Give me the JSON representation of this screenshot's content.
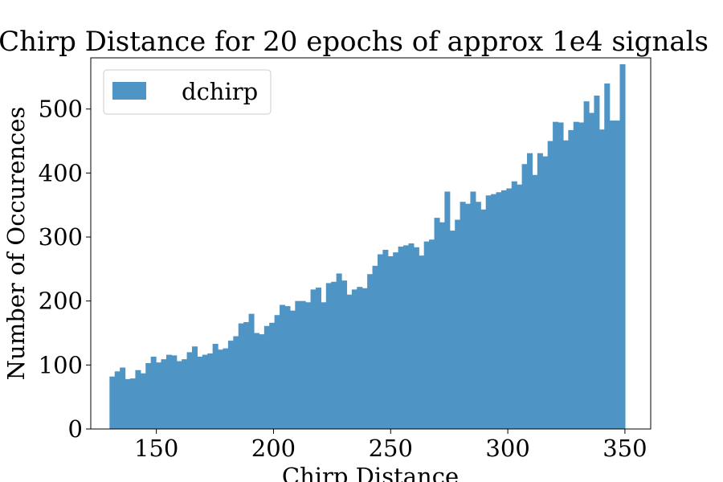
{
  "chart_data": {
    "type": "bar",
    "title": "Chirp Distance for 20 epochs of approx 1e4 signals",
    "xlabel": "Chirp Distance",
    "ylabel": "Number of Occurences",
    "xlim": [
      122,
      361
    ],
    "ylim": [
      0,
      580
    ],
    "x_ticks": [
      150,
      200,
      250,
      300,
      350
    ],
    "y_ticks": [
      0,
      100,
      200,
      300,
      400,
      500
    ],
    "grid": false,
    "legend": "top-left",
    "bin_range": [
      130,
      350
    ],
    "series": [
      {
        "name": "dchirp",
        "color": "#4e94c4",
        "values": [
          82,
          90,
          96,
          78,
          79,
          92,
          87,
          103,
          113,
          104,
          109,
          116,
          115,
          106,
          109,
          120,
          129,
          113,
          116,
          118,
          133,
          124,
          126,
          138,
          145,
          165,
          167,
          180,
          150,
          148,
          161,
          166,
          178,
          194,
          192,
          185,
          200,
          200,
          198,
          218,
          221,
          198,
          228,
          230,
          243,
          232,
          210,
          218,
          222,
          220,
          242,
          255,
          273,
          280,
          270,
          276,
          285,
          287,
          290,
          284,
          271,
          293,
          296,
          330,
          323,
          371,
          310,
          327,
          355,
          352,
          371,
          355,
          343,
          365,
          367,
          370,
          373,
          376,
          387,
          382,
          414,
          431,
          397,
          431,
          426,
          450,
          480,
          479,
          451,
          467,
          480,
          479,
          512,
          494,
          521,
          468,
          540,
          482,
          482,
          570
        ]
      }
    ]
  }
}
